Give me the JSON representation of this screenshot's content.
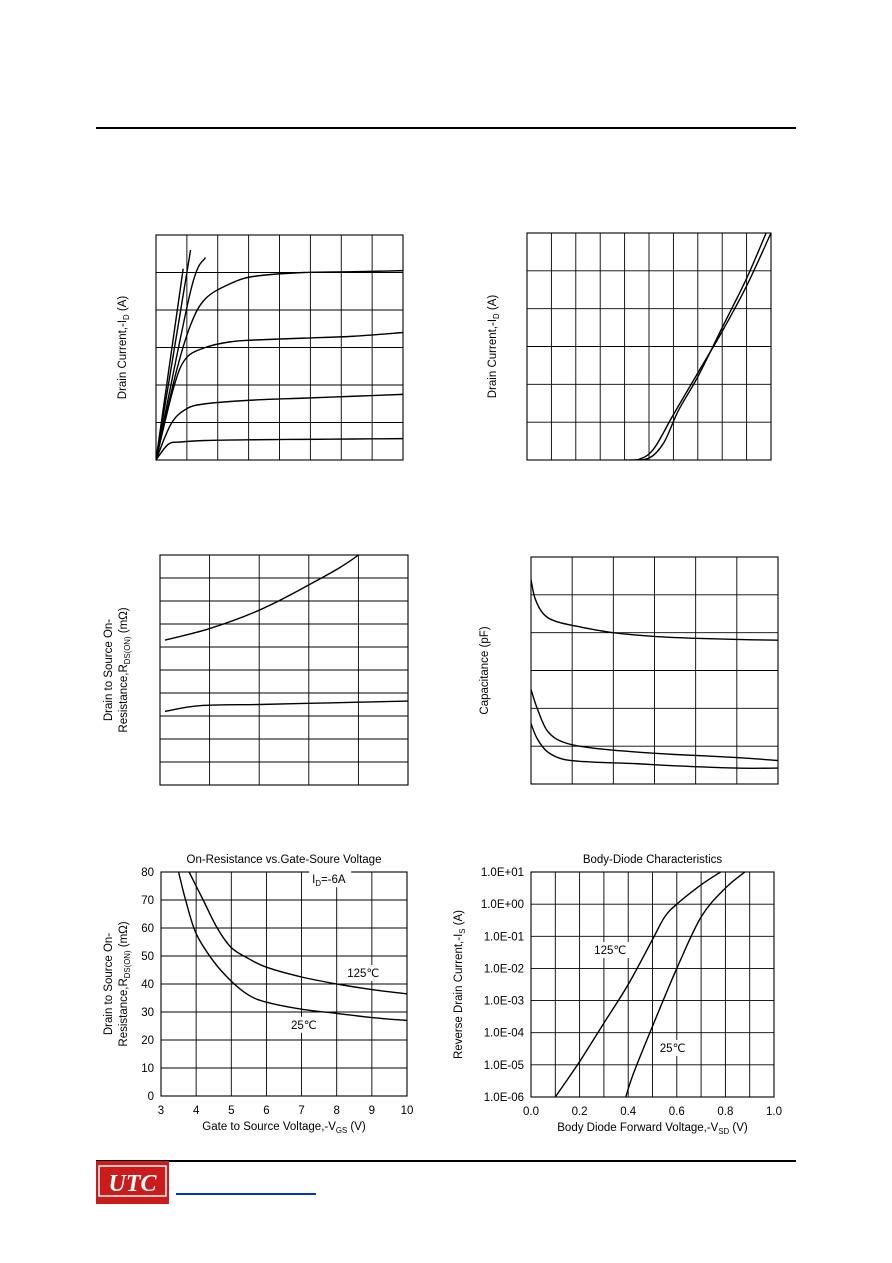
{
  "logo": {
    "text": "UTC",
    "color": "#cc1b1b"
  },
  "footer": {
    "link_color": "#0033cc"
  },
  "colors": {
    "curve": "#000000",
    "grid": "#000000"
  },
  "chart_data": [
    {
      "id": "c1",
      "type": "line",
      "title": "",
      "xlabel": "",
      "ylabel": "Drain Current,-I_D (A)",
      "xlim": [
        0,
        5
      ],
      "ylim": [
        0,
        6
      ],
      "grid": true,
      "series": [
        {
          "x": [
            0,
            0.25,
            0.5,
            1,
            2,
            3,
            4,
            5
          ],
          "values": [
            0,
            0.42,
            0.48,
            0.52,
            0.54,
            0.55,
            0.56,
            0.57
          ]
        },
        {
          "x": [
            0,
            0.3,
            0.6,
            1,
            2,
            3,
            4,
            5
          ],
          "values": [
            0,
            0.95,
            1.35,
            1.5,
            1.6,
            1.65,
            1.7,
            1.75
          ]
        },
        {
          "x": [
            0,
            0.35,
            0.6,
            1,
            1.5,
            2,
            3,
            4,
            5
          ],
          "values": [
            0,
            1.9,
            2.7,
            3.0,
            3.15,
            3.2,
            3.25,
            3.3,
            3.4
          ]
        },
        {
          "x": [
            0,
            0.4,
            0.7,
            1,
            1.5,
            2,
            3,
            4,
            5
          ],
          "values": [
            0,
            2.3,
            3.6,
            4.3,
            4.7,
            4.9,
            5.0,
            5.02,
            5.05
          ]
        },
        {
          "x": [
            0,
            0.7,
            1
          ],
          "values": [
            0,
            4.5,
            5.4
          ]
        },
        {
          "x": [
            0,
            0.7
          ],
          "values": [
            0,
            5.6
          ]
        },
        {
          "x": [
            0,
            0.55
          ],
          "values": [
            0,
            5.1
          ]
        }
      ]
    },
    {
      "id": "c2",
      "type": "line",
      "title": "",
      "xlabel": "",
      "ylabel": "Drain Current,-I_D (A)",
      "xlim": [
        0,
        10
      ],
      "ylim": [
        0,
        6
      ],
      "grid": true,
      "series": [
        {
          "x": [
            4.0,
            4.6,
            5.2,
            6.0,
            7.0,
            8.0,
            9.0,
            10.0
          ],
          "values": [
            0,
            0.02,
            0.3,
            1.2,
            2.3,
            3.4,
            4.6,
            6.0
          ]
        },
        {
          "x": [
            4.2,
            5.0,
            5.6,
            6.2,
            7.0,
            8.0,
            9.0,
            9.8
          ],
          "values": [
            0,
            0.05,
            0.45,
            1.3,
            2.2,
            3.5,
            4.8,
            6.0
          ]
        }
      ]
    },
    {
      "id": "c3",
      "type": "line",
      "title": "",
      "xlabel": "",
      "ylabel": "Drain to Source On-Resistance,R_DS(ON) (mΩ)",
      "xlim": [
        0,
        5
      ],
      "ylim": [
        0,
        10
      ],
      "grid": true,
      "series": [
        {
          "x": [
            0.1,
            1,
            2,
            3,
            4,
            5
          ],
          "values": [
            6.3,
            6.8,
            7.6,
            8.7,
            10.0,
            12.0
          ]
        },
        {
          "x": [
            0.1,
            0.8,
            2,
            3,
            4,
            5
          ],
          "values": [
            3.2,
            3.45,
            3.5,
            3.55,
            3.6,
            3.65
          ]
        }
      ]
    },
    {
      "id": "c4",
      "type": "line",
      "title": "",
      "xlabel": "",
      "ylabel": "Capacitance (pF)",
      "xlim": [
        0,
        6
      ],
      "ylim": [
        0,
        6
      ],
      "grid": true,
      "series": [
        {
          "x": [
            0,
            0.1,
            0.3,
            0.6,
            1.2,
            2,
            3,
            4,
            5,
            6
          ],
          "values": [
            5.4,
            4.9,
            4.5,
            4.3,
            4.15,
            4.0,
            3.9,
            3.85,
            3.82,
            3.8
          ]
        },
        {
          "x": [
            0,
            0.15,
            0.4,
            0.8,
            1.5,
            2.5,
            3.5,
            5,
            6
          ],
          "values": [
            2.5,
            2.0,
            1.4,
            1.1,
            0.95,
            0.85,
            0.78,
            0.7,
            0.62
          ]
        },
        {
          "x": [
            0,
            0.15,
            0.4,
            0.8,
            1.5,
            2.5,
            3.5,
            5,
            6
          ],
          "values": [
            1.6,
            1.2,
            0.85,
            0.65,
            0.58,
            0.54,
            0.48,
            0.42,
            0.42
          ]
        }
      ]
    },
    {
      "id": "c5",
      "type": "line",
      "title": "On-Resistance vs.Gate-Soure Voltage",
      "xlabel": "Gate to Source Voltage,-V_GS (V)",
      "ylabel": "Drain to Source On-Resistance,R_DS(ON) (mΩ)",
      "xlim": [
        3,
        10
      ],
      "ylim": [
        0,
        80
      ],
      "grid": true,
      "xticks": [
        "3",
        "4",
        "5",
        "6",
        "7",
        "8",
        "9",
        "10"
      ],
      "yticks": [
        "0",
        "10",
        "20",
        "30",
        "40",
        "50",
        "60",
        "70",
        "80"
      ],
      "annotations": [
        "I_D=-6A",
        "125℃",
        "25℃"
      ],
      "series": [
        {
          "name": "125℃",
          "x": [
            3.8,
            4.2,
            4.6,
            5,
            5.5,
            6,
            7,
            8,
            9,
            10
          ],
          "values": [
            80,
            70,
            60,
            53,
            49,
            46,
            42.5,
            40,
            38,
            36.5
          ]
        },
        {
          "name": "25℃",
          "x": [
            3.5,
            3.7,
            4,
            4.5,
            5,
            5.5,
            6,
            7,
            8,
            9,
            10
          ],
          "values": [
            80,
            70,
            58,
            48,
            41,
            36,
            33.5,
            31,
            29.5,
            28,
            27
          ]
        }
      ]
    },
    {
      "id": "c6",
      "type": "line",
      "title": "Body-Diode Characteristics",
      "xlabel": "Body Diode Forward Voltage,-V_SD (V)",
      "ylabel": "Reverse Drain Current,-I_S (A)",
      "xlim": [
        0.0,
        1.0
      ],
      "ylim": [
        -6,
        1
      ],
      "yscale": "log",
      "grid": true,
      "xticks": [
        "0.0",
        "0.2",
        "0.4",
        "0.6",
        "0.8",
        "1.0"
      ],
      "yticks": [
        "1.0E-06",
        "1.0E-05",
        "1.0E-04",
        "1.0E-03",
        "1.0E-02",
        "1.0E-01",
        "1.0E+00",
        "1.0E+01"
      ],
      "annotations": [
        "125℃",
        "25℃"
      ],
      "series": [
        {
          "name": "125℃",
          "x": [
            0.1,
            0.2,
            0.3,
            0.4,
            0.5,
            0.55,
            0.6,
            0.7,
            0.78
          ],
          "values": [
            -6,
            -4.9,
            -3.7,
            -2.5,
            -1.1,
            -0.4,
            0,
            0.6,
            1
          ]
        },
        {
          "name": "25℃",
          "x": [
            0.39,
            0.42,
            0.5,
            0.6,
            0.7,
            0.8,
            0.88
          ],
          "values": [
            -6,
            -5.3,
            -3.8,
            -2.0,
            -0.4,
            0.5,
            1
          ]
        }
      ]
    }
  ]
}
